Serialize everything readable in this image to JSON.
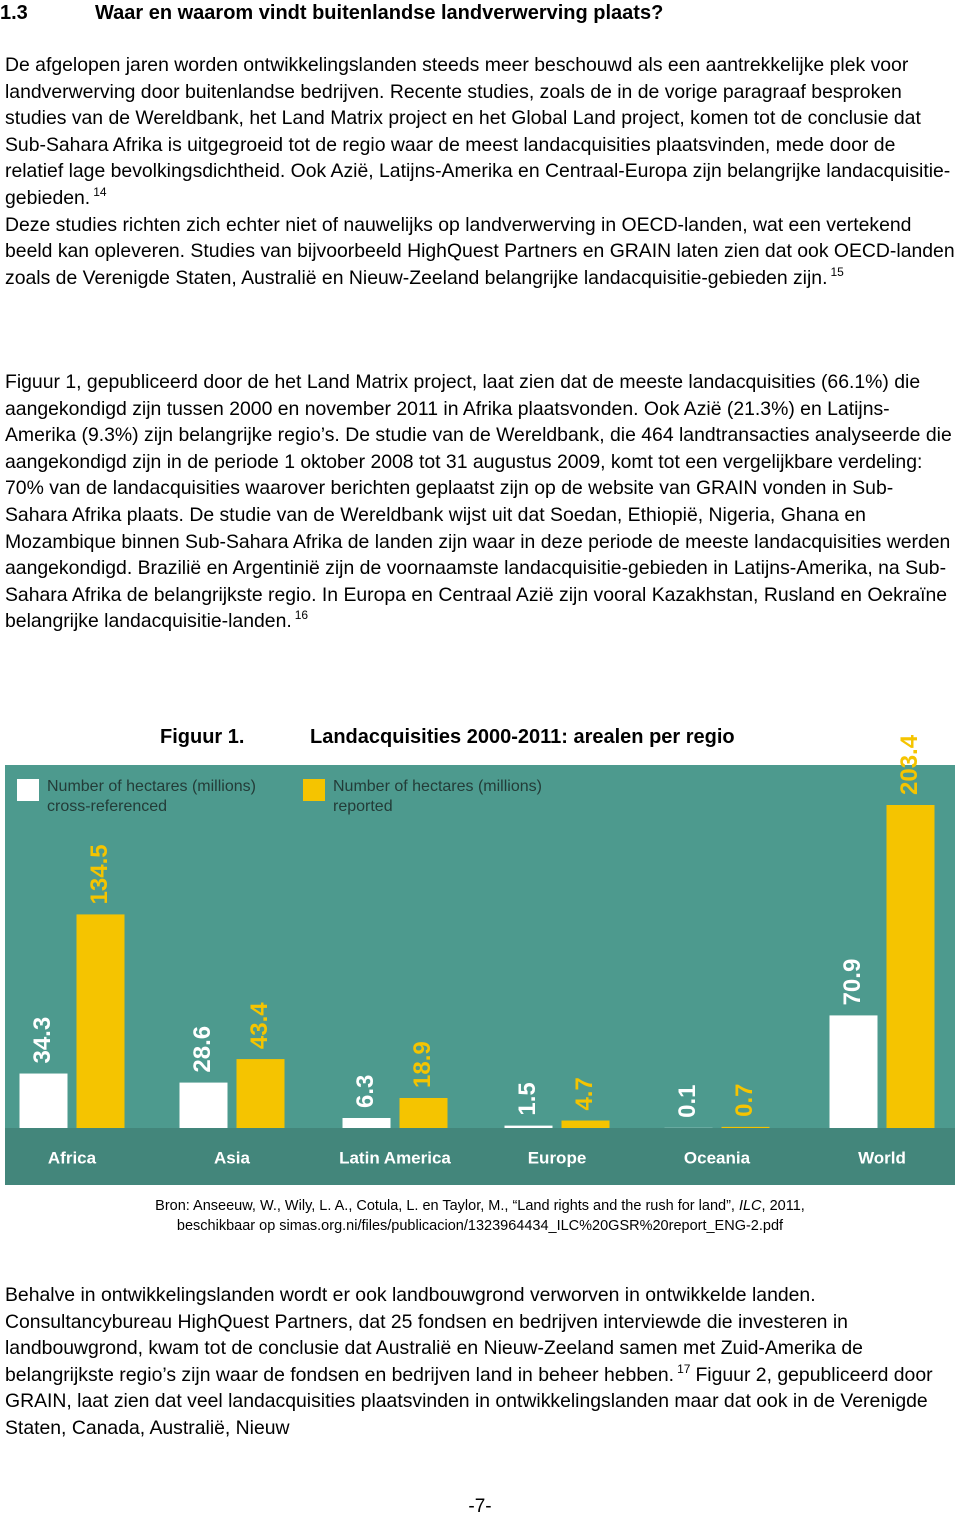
{
  "heading": {
    "number": "1.3",
    "title": "Waar en waarom vindt buitenlandse landverwerving plaats?"
  },
  "paragraphs": [
    {
      "text": "De afgelopen jaren worden ontwikkelingslanden steeds meer beschouwd als een aantrekkelijke plek voor landverwerving door buitenlandse bedrijven. Recente studies, zoals de in de vorige paragraaf besproken studies van de Wereldbank, het Land Matrix project en het Global Land project, komen tot de conclusie dat Sub-Sahara Afrika is uitgegroeid tot de regio waar de meest landacquisities plaatsvinden, mede door de relatief lage bevolkingsdichtheid. Ook Azië, Latijns-Amerika en Centraal-Europa zijn belangrijke landacquisitie-gebieden.",
      "footnote": "14"
    },
    {
      "text": "Deze studies richten zich echter niet of nauwelijks op landverwerving in OECD-landen, wat een vertekend beeld kan opleveren. Studies van bijvoorbeeld HighQuest Partners en GRAIN laten zien dat ook OECD-landen zoals de Verenigde Staten, Australië en Nieuw-Zeeland belangrijke landacquisitie-gebieden zijn.",
      "footnote": "15"
    },
    {
      "text": "Figuur 1, gepubliceerd door de het Land Matrix project, laat zien dat de meeste landacquisities (66.1%) die aangekondigd zijn tussen 2000 en november 2011 in Afrika plaatsvonden. Ook Azië (21.3%) en Latijns-Amerika (9.3%) zijn belangrijke regio’s. De studie van de Wereldbank, die 464 landtransacties analyseerde die aangekondigd zijn in de periode 1 oktober 2008 tot 31 augustus 2009, komt tot een vergelijkbare verdeling: 70% van de landacquisities waarover berichten geplaatst zijn op de website van GRAIN vonden in Sub-Sahara Afrika plaats. De studie van de Wereldbank wijst uit dat Soedan, Ethiopië, Nigeria, Ghana en Mozambique binnen Sub-Sahara Afrika de landen zijn waar in deze periode de meeste landacquisities werden aangekondigd. Brazilië en Argentinië zijn de voornaamste landacquisitie-gebieden in Latijns-Amerika, na Sub-Sahara Afrika de belangrijkste regio. In Europa en Centraal Azië zijn vooral Kazakhstan, Rusland en Oekraïne belangrijke landacquisitie-landen.",
      "footnote": "16"
    },
    {
      "text": "Behalve in ontwikkelingslanden wordt er ook landbouwgrond verworven in ontwikkelde landen. Consultancybureau HighQuest Partners, dat 25 fondsen en bedrijven interviewde die investeren in landbouwgrond, kwam tot de conclusie dat Australië en Nieuw-Zeeland samen met Zuid-Amerika de belangrijkste regio’s zijn waar de fondsen en bedrijven land in beheer hebben.",
      "footnote": "17",
      "text_after": "Figuur 2, gepubliceerd door GRAIN, laat zien dat veel landacquisities plaatsvinden in ontwikkelingslanden maar dat ook in de Verenigde Staten, Canada, Australië, Nieuw"
    }
  ],
  "figure": {
    "label": "Figuur 1.",
    "title": "Landacquisities 2000-2011: arealen per regio"
  },
  "chart_data": {
    "type": "bar",
    "categories": [
      "Africa",
      "Asia",
      "Latin America",
      "Europe",
      "Oceania",
      "World"
    ],
    "series": [
      {
        "name": "Number of hectares (millions) cross-referenced",
        "color": "#ffffff",
        "values": [
          34.3,
          28.6,
          6.3,
          1.5,
          0.1,
          70.9
        ]
      },
      {
        "name": "Number of hectares (millions) reported",
        "color": "#f5c400",
        "values": [
          134.5,
          43.4,
          18.9,
          4.7,
          0.7,
          203.4
        ]
      }
    ],
    "background": "#4d9a8e"
  },
  "source": {
    "before": "Bron: Anseeuw, W., Wily, L. A., Cotula, L. en Taylor, M., “Land rights and the rush for land”, ",
    "italic": "ILC",
    "after": ", 2011, beschikbaar op simas.org.ni/files/publicacion/1323964434_ILC%20GSR%20report_ENG-2.pdf"
  },
  "page_number": "-7-"
}
